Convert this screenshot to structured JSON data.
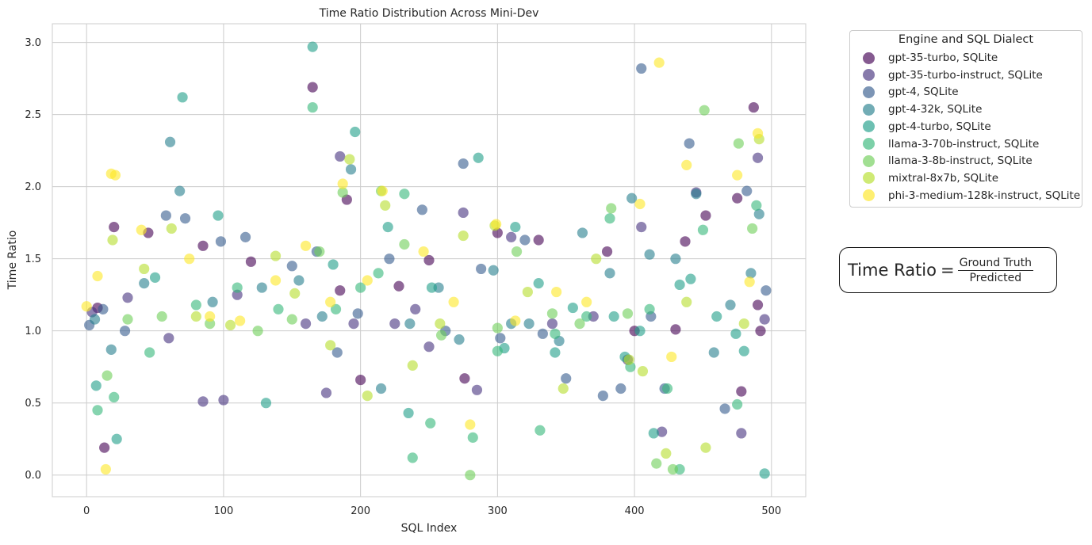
{
  "chart_data": {
    "type": "scatter",
    "title": "Time Ratio Distribution Across Mini-Dev",
    "xlabel": "SQL Index",
    "ylabel": "Time Ratio",
    "xlim": [
      -25,
      525
    ],
    "ylim": [
      -0.15,
      3.13
    ],
    "xticks": [
      0,
      100,
      200,
      300,
      400,
      500
    ],
    "yticks": [
      0.0,
      0.5,
      1.0,
      1.5,
      2.0,
      2.5,
      3.0
    ],
    "xtick_labels": [
      "0",
      "100",
      "200",
      "300",
      "400",
      "500"
    ],
    "ytick_labels": [
      "0.0",
      "0.5",
      "1.0",
      "1.5",
      "2.0",
      "2.5",
      "3.0"
    ],
    "grid": true,
    "legend_title": "Engine and SQL Dialect",
    "legend_position": "outside-top-right",
    "series": [
      {
        "name": "gpt-35-turbo, SQLite",
        "color": "#440154",
        "x": [
          8,
          13,
          20,
          45,
          85,
          120,
          165,
          185,
          190,
          200,
          228,
          250,
          276,
          300,
          330,
          380,
          400,
          430,
          437,
          452,
          475,
          478,
          487,
          490,
          492
        ],
        "y": [
          1.16,
          0.19,
          1.72,
          1.68,
          1.59,
          1.48,
          2.69,
          1.28,
          1.91,
          0.66,
          1.31,
          1.49,
          0.67,
          1.68,
          1.63,
          1.55,
          1.0,
          1.01,
          1.62,
          1.8,
          1.92,
          0.58,
          2.55,
          1.18,
          1.0
        ]
      },
      {
        "name": "gpt-35-turbo-instruct, SQLite",
        "color": "#46327e",
        "x": [
          4,
          30,
          60,
          85,
          100,
          110,
          160,
          175,
          185,
          195,
          225,
          240,
          250,
          275,
          285,
          310,
          340,
          370,
          395,
          405,
          420,
          445,
          478,
          490,
          495
        ],
        "y": [
          1.13,
          1.23,
          0.95,
          0.51,
          0.52,
          1.25,
          1.05,
          0.57,
          2.21,
          1.05,
          1.05,
          1.15,
          0.89,
          1.82,
          0.59,
          1.65,
          1.05,
          1.1,
          0.8,
          1.72,
          0.3,
          1.96,
          0.29,
          2.2,
          1.08
        ]
      },
      {
        "name": "gpt-4, SQLite",
        "color": "#365c8d",
        "x": [
          2,
          12,
          28,
          58,
          72,
          98,
          116,
          150,
          168,
          183,
          198,
          221,
          245,
          262,
          275,
          288,
          302,
          320,
          333,
          350,
          377,
          390,
          405,
          412,
          422,
          440,
          466,
          482,
          496
        ],
        "y": [
          1.04,
          1.15,
          1.0,
          1.8,
          1.78,
          1.62,
          1.65,
          1.45,
          1.55,
          0.85,
          1.12,
          1.5,
          1.84,
          1.0,
          2.16,
          1.43,
          0.95,
          1.63,
          0.98,
          0.67,
          0.55,
          0.6,
          2.82,
          1.1,
          0.6,
          2.3,
          0.46,
          1.97,
          1.28
        ]
      },
      {
        "name": "gpt-4-32k, SQLite",
        "color": "#277f8e",
        "x": [
          6,
          18,
          42,
          61,
          68,
          92,
          128,
          155,
          172,
          193,
          215,
          236,
          257,
          272,
          297,
          310,
          323,
          345,
          362,
          382,
          398,
          411,
          430,
          445,
          458,
          470,
          485,
          491
        ],
        "y": [
          1.08,
          0.87,
          1.33,
          2.31,
          1.97,
          1.2,
          1.3,
          1.35,
          1.1,
          2.12,
          0.6,
          1.05,
          1.3,
          0.94,
          1.42,
          1.05,
          1.05,
          0.93,
          1.68,
          1.4,
          1.92,
          1.53,
          1.5,
          1.95,
          0.85,
          1.18,
          1.4,
          1.81
        ]
      },
      {
        "name": "gpt-4-turbo, SQLite",
        "color": "#1f9e89",
        "x": [
          7,
          22,
          50,
          70,
          96,
          131,
          165,
          180,
          196,
          220,
          235,
          252,
          286,
          305,
          313,
          330,
          342,
          355,
          385,
          393,
          404,
          414,
          433,
          441,
          460,
          474,
          480,
          495
        ],
        "y": [
          0.62,
          0.25,
          1.37,
          2.62,
          1.8,
          0.5,
          2.97,
          1.46,
          2.38,
          1.72,
          0.43,
          1.3,
          2.2,
          0.88,
          1.72,
          1.33,
          0.85,
          1.16,
          1.1,
          0.82,
          1.0,
          0.29,
          1.32,
          1.36,
          1.1,
          0.98,
          0.86,
          0.01
        ]
      },
      {
        "name": "llama-3-70b-instruct, SQLite",
        "color": "#35b779",
        "x": [
          8,
          20,
          46,
          80,
          110,
          140,
          165,
          182,
          200,
          213,
          232,
          238,
          251,
          282,
          300,
          331,
          342,
          365,
          382,
          397,
          411,
          424,
          433,
          450,
          475,
          489
        ],
        "y": [
          0.45,
          0.54,
          0.85,
          1.18,
          1.3,
          1.15,
          2.55,
          1.15,
          1.3,
          1.4,
          1.95,
          0.12,
          0.36,
          0.26,
          0.86,
          0.31,
          0.98,
          1.1,
          1.78,
          0.75,
          1.15,
          0.6,
          0.04,
          1.7,
          0.49,
          1.87
        ]
      },
      {
        "name": "llama-3-8b-instruct, SQLite",
        "color": "#6ece58",
        "x": [
          15,
          30,
          55,
          90,
          125,
          150,
          170,
          187,
          215,
          232,
          259,
          280,
          300,
          314,
          340,
          360,
          383,
          395,
          416,
          428,
          451,
          476,
          486
        ],
        "y": [
          0.69,
          1.08,
          1.1,
          1.05,
          1.0,
          1.08,
          1.55,
          1.96,
          1.97,
          1.6,
          0.97,
          0.0,
          1.02,
          1.55,
          1.12,
          1.05,
          1.85,
          1.12,
          0.08,
          0.04,
          2.53,
          2.3,
          1.71
        ]
      },
      {
        "name": "mixtral-8x7b, SQLite",
        "color": "#b5de2b",
        "x": [
          19,
          42,
          62,
          80,
          105,
          138,
          152,
          178,
          192,
          205,
          218,
          238,
          258,
          275,
          298,
          322,
          348,
          372,
          396,
          406,
          423,
          438,
          452,
          480,
          491
        ],
        "y": [
          1.63,
          1.43,
          1.71,
          1.1,
          1.04,
          1.52,
          1.26,
          0.9,
          2.19,
          0.55,
          1.87,
          0.76,
          1.05,
          1.66,
          1.73,
          1.27,
          0.6,
          1.5,
          0.8,
          0.72,
          0.15,
          1.2,
          0.19,
          1.05,
          2.33
        ]
      },
      {
        "name": "phi-3-medium-128k-instruct, SQLite",
        "color": "#fde725",
        "x": [
          0,
          8,
          14,
          18,
          21,
          40,
          75,
          90,
          112,
          138,
          160,
          178,
          187,
          205,
          216,
          246,
          268,
          280,
          299,
          313,
          343,
          365,
          404,
          418,
          427,
          438,
          475,
          484,
          490
        ],
        "y": [
          1.17,
          1.38,
          0.04,
          2.09,
          2.08,
          1.7,
          1.5,
          1.1,
          1.07,
          1.35,
          1.59,
          1.2,
          2.02,
          1.35,
          1.97,
          1.55,
          1.2,
          0.35,
          1.74,
          1.07,
          1.27,
          1.2,
          1.88,
          2.86,
          0.82,
          2.15,
          2.08,
          1.34,
          2.37
        ]
      }
    ]
  },
  "formula": {
    "lhs": "Time Ratio",
    "eq": "=",
    "numerator": "Ground Truth",
    "denominator": "Predicted"
  }
}
